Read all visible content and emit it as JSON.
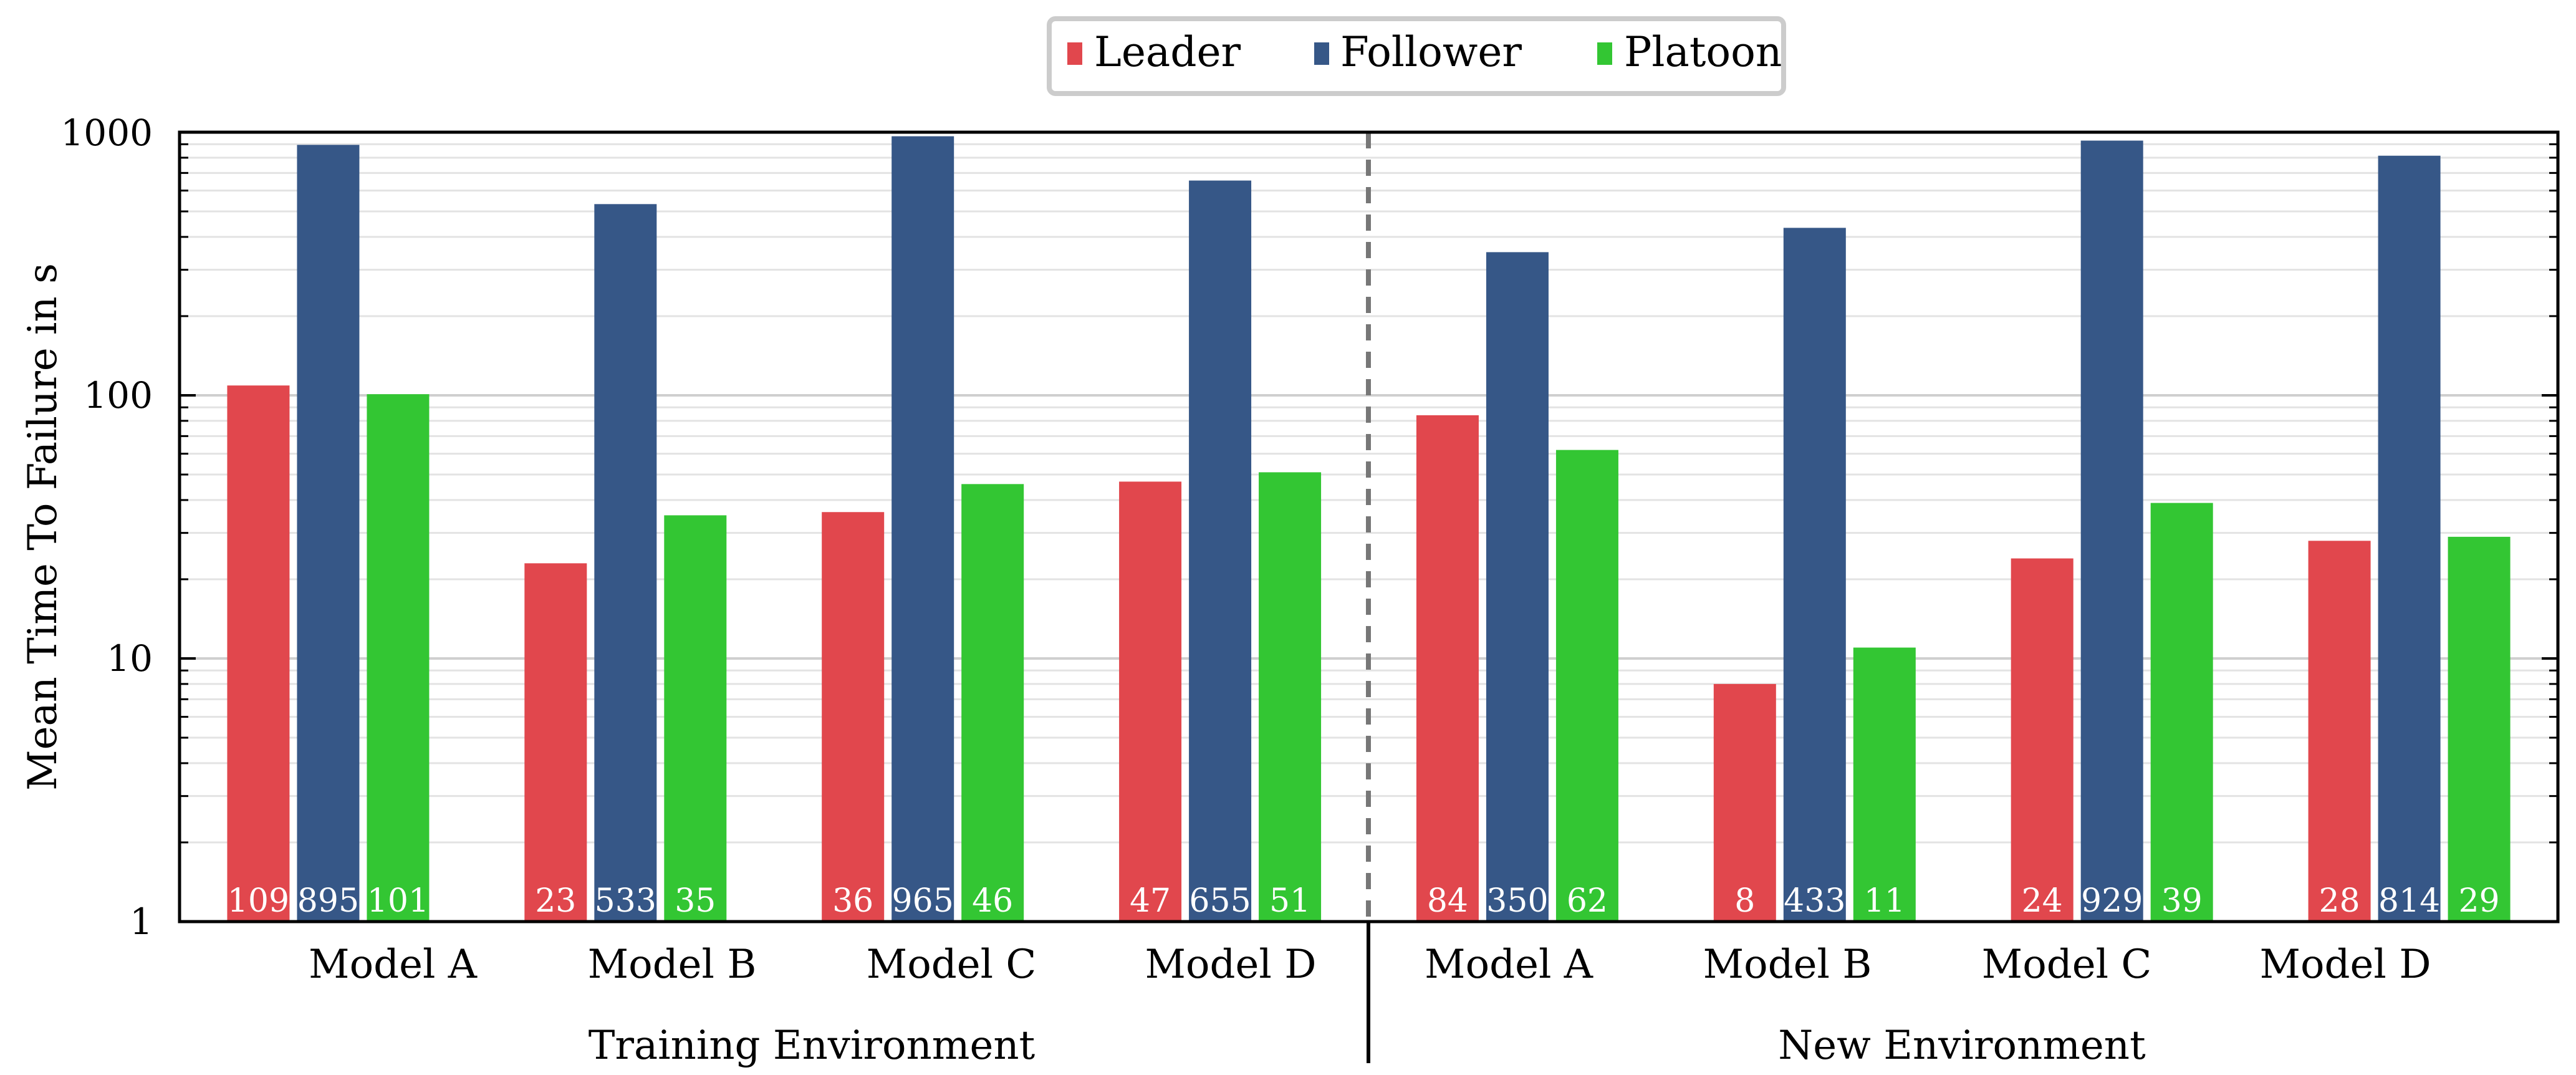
{
  "chart_data": {
    "type": "bar",
    "scale": "log",
    "ylabel": "Mean Time To Failure in s",
    "ylim": [
      1,
      1000
    ],
    "yticks": [
      1,
      10,
      100,
      1000
    ],
    "ytick_labels": [
      "1",
      "10",
      "100",
      "1000"
    ],
    "legend_position": "top-center",
    "categories": [
      "Model A",
      "Model B",
      "Model C",
      "Model D",
      "Model A",
      "Model B",
      "Model C",
      "Model D"
    ],
    "groups": [
      {
        "label": "Training Environment",
        "categories": [
          0,
          1,
          2,
          3
        ]
      },
      {
        "label": "New Environment",
        "categories": [
          4,
          5,
          6,
          7
        ]
      }
    ],
    "series": [
      {
        "name": "Leader",
        "color": "#e1474d",
        "values": [
          109,
          23,
          36,
          47,
          84,
          8,
          24,
          28
        ]
      },
      {
        "name": "Follower",
        "color": "#365787",
        "values": [
          895,
          533,
          965,
          655,
          350,
          433,
          929,
          814
        ]
      },
      {
        "name": "Platoon",
        "color": "#33c633",
        "values": [
          101,
          35,
          46,
          51,
          62,
          11,
          39,
          29
        ]
      }
    ]
  }
}
